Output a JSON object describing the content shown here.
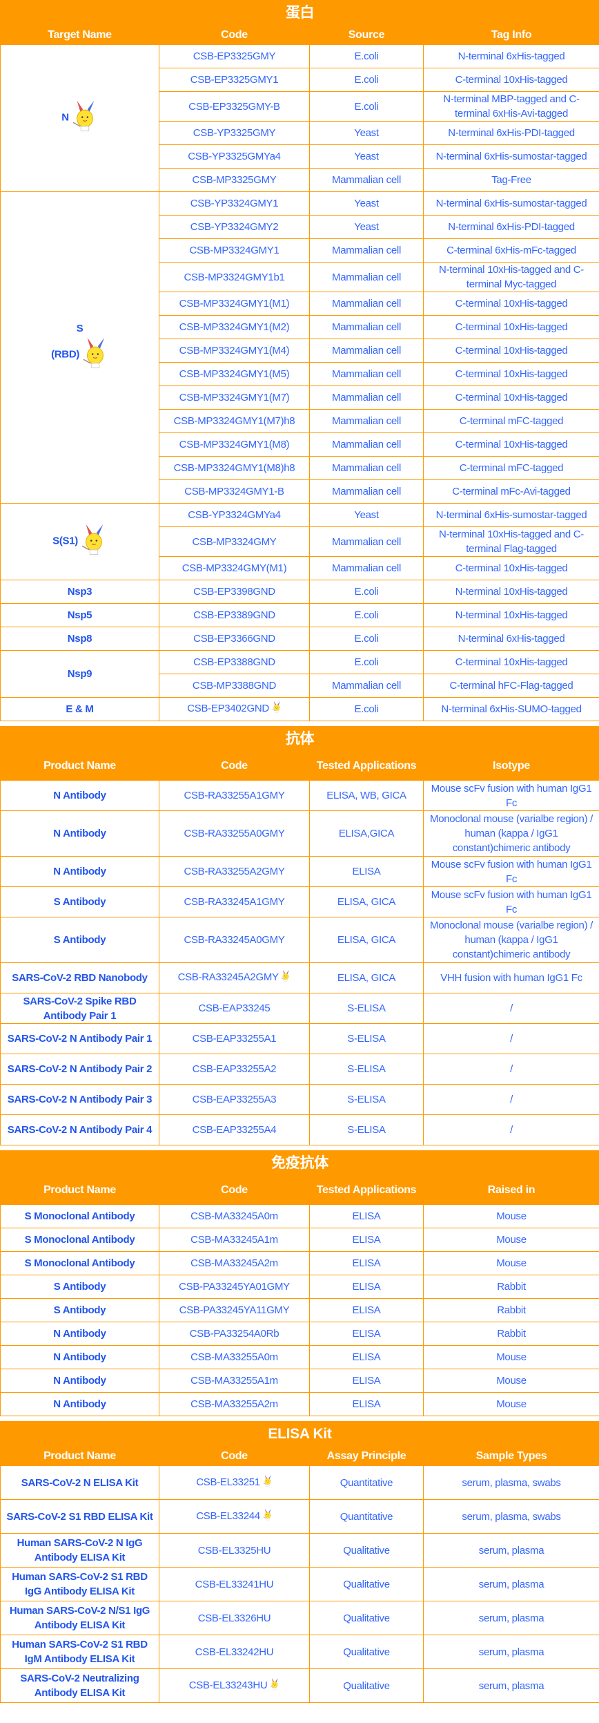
{
  "colors": {
    "accent": "#ff9900",
    "text": "#3366ff",
    "name_text": "#2255ee",
    "header_text": "#ffffff"
  },
  "protein": {
    "title": "蛋白",
    "headers": [
      "Target Name",
      "Code",
      "Source",
      "Tag Info"
    ],
    "groups": [
      {
        "name": "N",
        "mascot": true,
        "rows": [
          [
            "CSB-EP3325GMY",
            "E.coli",
            "N-terminal 6xHis-tagged"
          ],
          [
            "CSB-EP3325GMY1",
            "E.coli",
            "C-terminal 10xHis-tagged"
          ],
          [
            "CSB-EP3325GMY-B",
            "E.coli",
            "N-terminal MBP-tagged and C-terminal 6xHis-Avi-tagged"
          ],
          [
            "CSB-YP3325GMY",
            "Yeast",
            "N-terminal 6xHis-PDI-tagged"
          ],
          [
            "CSB-YP3325GMYa4",
            "Yeast",
            "N-terminal 6xHis-sumostar-tagged"
          ],
          [
            "CSB-MP3325GMY",
            "Mammalian cell",
            "Tag-Free"
          ]
        ]
      },
      {
        "name": "S",
        "name2": "(RBD)",
        "mascot": true,
        "rows": [
          [
            "CSB-YP3324GMY1",
            "Yeast",
            "N-terminal 6xHis-sumostar-tagged"
          ],
          [
            "CSB-YP3324GMY2",
            "Yeast",
            "N-terminal 6xHis-PDI-tagged"
          ],
          [
            "CSB-MP3324GMY1",
            "Mammalian cell",
            "C-terminal 6xHis-mFc-tagged"
          ],
          [
            "CSB-MP3324GMY1b1",
            "Mammalian cell",
            "N-terminal 10xHis-tagged and C-terminal Myc-tagged"
          ],
          [
            "CSB-MP3324GMY1(M1)",
            "Mammalian cell",
            "C-terminal 10xHis-tagged"
          ],
          [
            "CSB-MP3324GMY1(M2)",
            "Mammalian cell",
            "C-terminal 10xHis-tagged"
          ],
          [
            "CSB-MP3324GMY1(M4)",
            "Mammalian cell",
            "C-terminal 10xHis-tagged"
          ],
          [
            "CSB-MP3324GMY1(M5)",
            "Mammalian cell",
            "C-terminal 10xHis-tagged"
          ],
          [
            "CSB-MP3324GMY1(M7)",
            "Mammalian cell",
            "C-terminal 10xHis-tagged"
          ],
          [
            "CSB-MP3324GMY1(M7)h8",
            "Mammalian cell",
            "C-terminal mFC-tagged"
          ],
          [
            "CSB-MP3324GMY1(M8)",
            "Mammalian cell",
            "C-terminal 10xHis-tagged"
          ],
          [
            "CSB-MP3324GMY1(M8)h8",
            "Mammalian cell",
            "C-terminal mFC-tagged"
          ],
          [
            "CSB-MP3324GMY1-B",
            "Mammalian cell",
            "C-terminal mFc-Avi-tagged"
          ]
        ]
      },
      {
        "name": "S(S1)",
        "mascot": true,
        "rows": [
          [
            "CSB-YP3324GMYa4",
            "Yeast",
            "N-terminal 6xHis-sumostar-tagged"
          ],
          [
            "CSB-MP3324GMY",
            "Mammalian cell",
            "N-terminal 10xHis-tagged and C-terminal Flag-tagged"
          ],
          [
            "CSB-MP3324GMY(M1)",
            "Mammalian cell",
            "C-terminal 10xHis-tagged"
          ]
        ]
      },
      {
        "name": "Nsp3",
        "rows": [
          [
            "CSB-EP3398GND",
            "E.coli",
            "N-terminal 10xHis-tagged"
          ]
        ]
      },
      {
        "name": "Nsp5",
        "rows": [
          [
            "CSB-EP3389GND",
            "E.coli",
            "N-terminal 10xHis-tagged"
          ]
        ]
      },
      {
        "name": "Nsp8",
        "rows": [
          [
            "CSB-EP3366GND",
            "E.coli",
            "N-terminal 6xHis-tagged"
          ]
        ]
      },
      {
        "name": "Nsp9",
        "rows": [
          [
            "CSB-EP3388GND",
            "E.coli",
            "C-terminal 10xHis-tagged"
          ],
          [
            "CSB-MP3388GND",
            "Mammalian cell",
            "C-terminal hFC-Flag-tagged"
          ]
        ]
      },
      {
        "name": "E & M",
        "rows": [
          [
            "CSB-EP3402GND",
            "E.coli",
            "N-terminal 6xHis-SUMO-tagged"
          ]
        ],
        "code_mascot": true
      }
    ]
  },
  "antibody": {
    "title": "抗体",
    "headers": [
      "Product Name",
      "Code",
      "Tested Applications",
      "Isotype"
    ],
    "rows": [
      [
        "N Antibody",
        "CSB-RA33255A1GMY",
        "ELISA, WB, GICA",
        "Mouse scFv fusion with human IgG1 Fc"
      ],
      [
        "N Antibody",
        "CSB-RA33255A0GMY",
        "ELISA,GICA",
        "Monoclonal mouse (varialbe region) / human (kappa / IgG1 constant)chimeric antibody"
      ],
      [
        "N Antibody",
        "CSB-RA33255A2GMY",
        "ELISA",
        "Mouse scFv fusion with human IgG1 Fc"
      ],
      [
        "S Antibody",
        "CSB-RA33245A1GMY",
        "ELISA, GICA",
        "Mouse scFv fusion with human IgG1 Fc"
      ],
      [
        "S Antibody",
        "CSB-RA33245A0GMY",
        "ELISA, GICA",
        "Monoclonal mouse (varialbe region) / human (kappa / IgG1 constant)chimeric antibody"
      ],
      [
        "SARS-CoV-2 RBD Nanobody",
        "CSB-RA33245A2GMY",
        "ELISA, GICA",
        "VHH fusion with human IgG1 Fc"
      ],
      [
        "SARS-CoV-2 Spike RBD Antibody Pair 1",
        "CSB-EAP33245",
        "S-ELISA",
        "/"
      ],
      [
        "SARS-CoV-2 N Antibody Pair 1",
        "CSB-EAP33255A1",
        "S-ELISA",
        "/"
      ],
      [
        "SARS-CoV-2 N Antibody Pair 2",
        "CSB-EAP33255A2",
        "S-ELISA",
        "/"
      ],
      [
        "SARS-CoV-2 N Antibody Pair 3",
        "CSB-EAP33255A3",
        "S-ELISA",
        "/"
      ],
      [
        "SARS-CoV-2 N Antibody Pair 4",
        "CSB-EAP33255A4",
        "S-ELISA",
        "/"
      ]
    ],
    "mascot_rows": [
      5
    ]
  },
  "immune": {
    "title": "免疫抗体",
    "headers": [
      "Product Name",
      "Code",
      "Tested Applications",
      "Raised in"
    ],
    "rows": [
      [
        "S Monoclonal Antibody",
        "CSB-MA33245A0m",
        "ELISA",
        "Mouse"
      ],
      [
        "S Monoclonal Antibody",
        "CSB-MA33245A1m",
        "ELISA",
        "Mouse"
      ],
      [
        "S Monoclonal Antibody",
        "CSB-MA33245A2m",
        "ELISA",
        "Mouse"
      ],
      [
        "S Antibody",
        "CSB-PA33245YA01GMY",
        "ELISA",
        "Rabbit"
      ],
      [
        "S Antibody",
        "CSB-PA33245YA11GMY",
        "ELISA",
        "Rabbit"
      ],
      [
        "N Antibody",
        "CSB-PA33254A0Rb",
        "ELISA",
        "Rabbit"
      ],
      [
        "N Antibody",
        "CSB-MA33255A0m",
        "ELISA",
        "Mouse"
      ],
      [
        "N Antibody",
        "CSB-MA33255A1m",
        "ELISA",
        "Mouse"
      ],
      [
        "N Antibody",
        "CSB-MA33255A2m",
        "ELISA",
        "Mouse"
      ]
    ],
    "mascot_rows": []
  },
  "elisa": {
    "title": "ELISA Kit",
    "headers": [
      "Product Name",
      "Code",
      "Assay Principle",
      "Sample Types"
    ],
    "rows": [
      [
        "SARS-CoV-2 N ELISA Kit",
        "CSB-EL33251",
        "Quantitative",
        "serum, plasma, swabs"
      ],
      [
        "SARS-CoV-2 S1 RBD ELISA Kit",
        "CSB-EL33244",
        "Quantitative",
        "serum, plasma, swabs"
      ],
      [
        "Human SARS-CoV-2 N IgG Antibody ELISA Kit",
        "CSB-EL3325HU",
        "Qualitative",
        "serum, plasma"
      ],
      [
        "Human SARS-CoV-2 S1 RBD IgG Antibody ELISA Kit",
        "CSB-EL33241HU",
        "Qualitative",
        "serum, plasma"
      ],
      [
        "Human SARS-CoV-2 N/S1 IgG Antibody ELISA Kit",
        "CSB-EL3326HU",
        "Qualitative",
        "serum, plasma"
      ],
      [
        "Human SARS-CoV-2 S1 RBD IgM Antibody ELISA Kit",
        "CSB-EL33242HU",
        "Qualitative",
        "serum, plasma"
      ],
      [
        "SARS-CoV-2 Neutralizing Antibody ELISA Kit",
        "CSB-EL33243HU",
        "Qualitative",
        "serum, plasma"
      ]
    ],
    "mascot_rows": [
      0,
      1,
      6
    ]
  }
}
